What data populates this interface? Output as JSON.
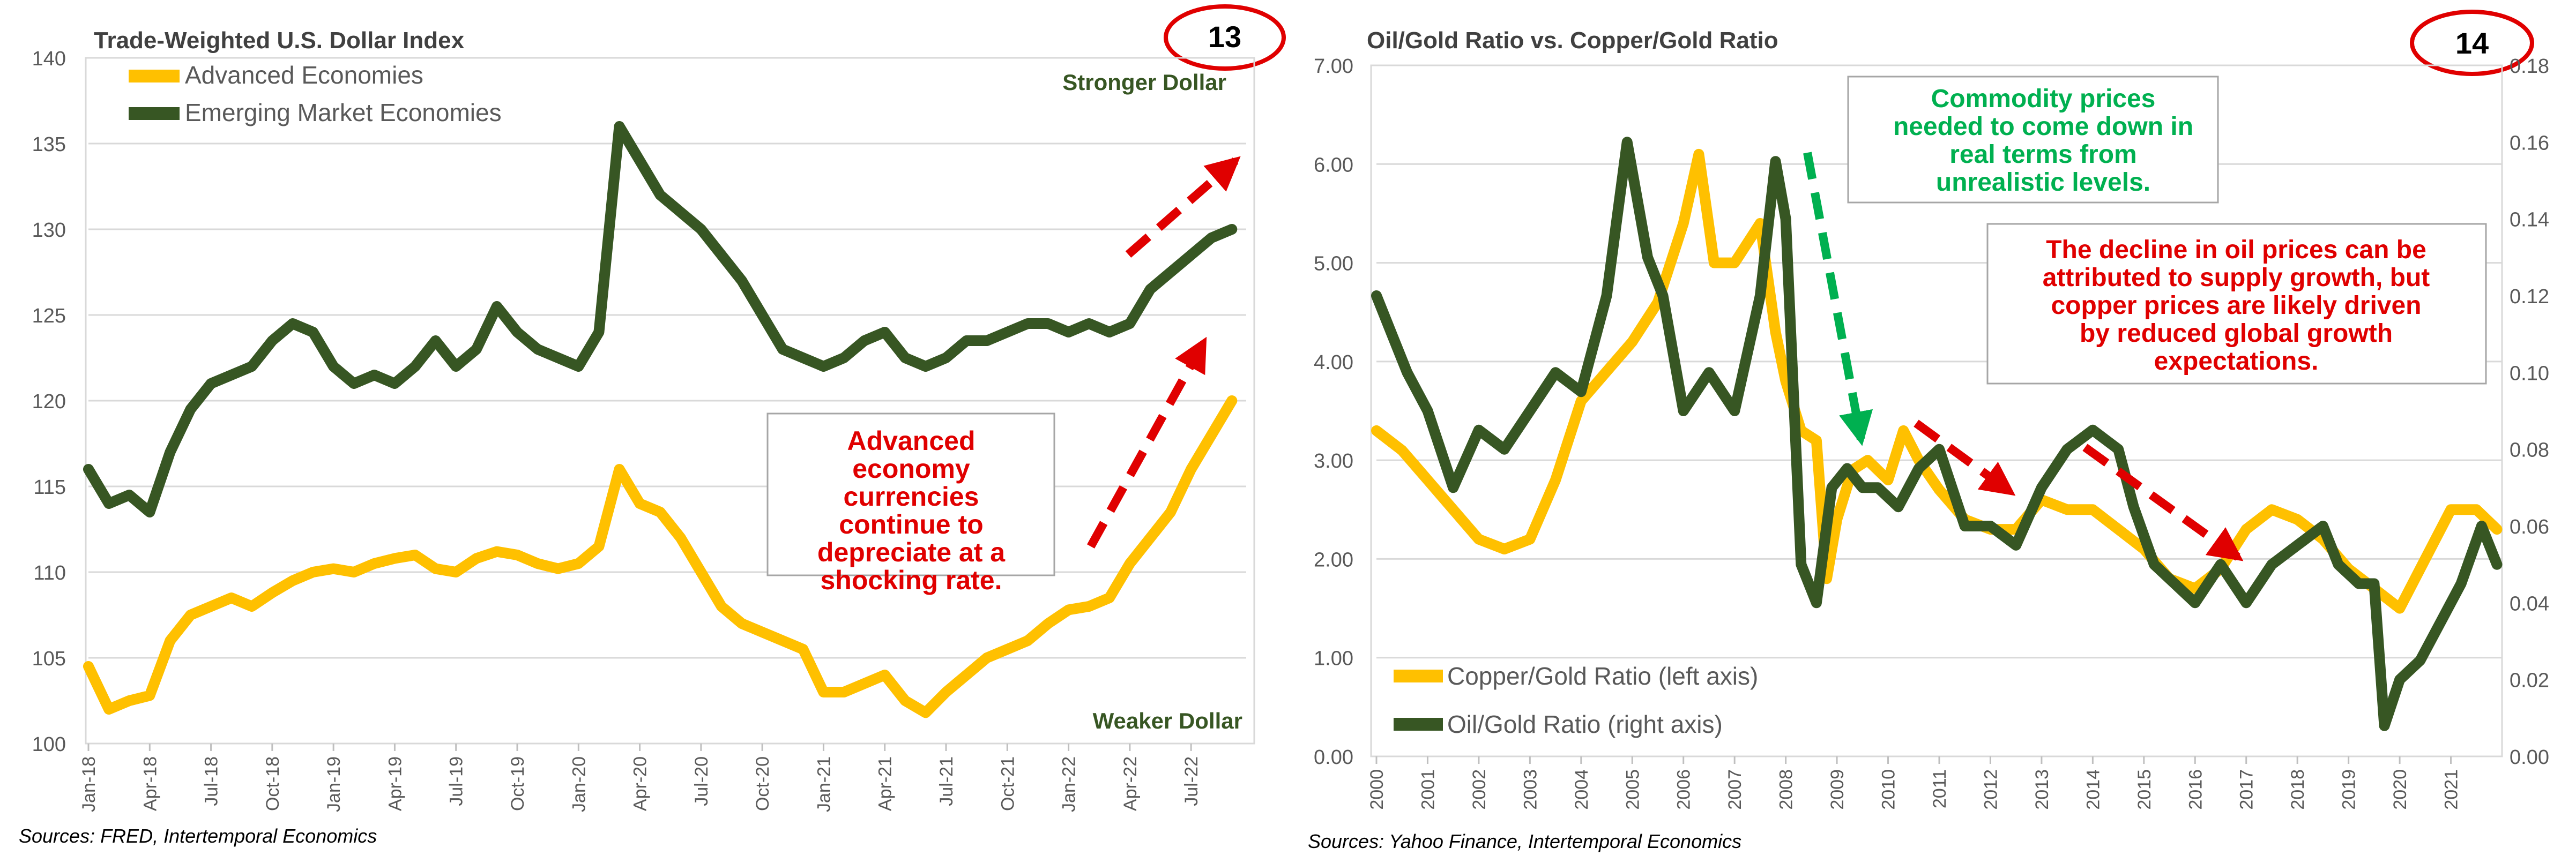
{
  "panels": {
    "left": {
      "title": "Trade-Weighted U.S. Dollar Index",
      "badge": "13",
      "source": "Sources: FRED, Intertemporal Economics",
      "annotations": {
        "stronger": "Stronger Dollar",
        "weaker": "Weaker Dollar",
        "box_lines": [
          "Advanced",
          "economy",
          "currencies",
          "continue to",
          "depreciate at a",
          "shocking rate."
        ]
      }
    },
    "right": {
      "title": "Oil/Gold Ratio vs. Copper/Gold Ratio",
      "badge": "14",
      "source": "Sources: Yahoo Finance, Intertemporal Economics",
      "annotations": {
        "green_box_lines": [
          "Commodity prices",
          "needed to come down in",
          "real terms from",
          "unrealistic levels."
        ],
        "red_box_lines": [
          "The decline in oil prices can be",
          "attributed to supply growth, but",
          "copper prices are likely driven",
          "by reduced global growth",
          "expectations."
        ]
      }
    }
  },
  "colors": {
    "yellow": "#FFC000",
    "green": "#375623",
    "red": "#E00000",
    "badge_red": "#E00000",
    "commodity_green": "#00B050",
    "text": "#404040"
  },
  "chart_data": [
    {
      "type": "line",
      "title": "Trade-Weighted U.S. Dollar Index",
      "ylim": [
        100,
        140
      ],
      "yticks": [
        "100",
        "105",
        "110",
        "115",
        "120",
        "125",
        "130",
        "135",
        "140"
      ],
      "xticks": [
        "Jan-18",
        "Apr-18",
        "Jul-18",
        "Oct-18",
        "Jan-19",
        "Apr-19",
        "Jul-19",
        "Oct-19",
        "Jan-20",
        "Apr-20",
        "Jul-20",
        "Oct-20",
        "Jan-21",
        "Apr-21",
        "Jul-21",
        "Oct-21",
        "Jan-22",
        "Apr-22",
        "Jul-22"
      ],
      "legend": "top-left",
      "series": [
        {
          "name": "Advanced Economies",
          "color": "#FFC000",
          "x": [
            "2018-01",
            "2018-02",
            "2018-03",
            "2018-04",
            "2018-05",
            "2018-06",
            "2018-07",
            "2018-08",
            "2018-09",
            "2018-10",
            "2018-11",
            "2018-12",
            "2019-01",
            "2019-02",
            "2019-03",
            "2019-04",
            "2019-05",
            "2019-06",
            "2019-07",
            "2019-08",
            "2019-09",
            "2019-10",
            "2019-11",
            "2019-12",
            "2020-01",
            "2020-02",
            "2020-03",
            "2020-04",
            "2020-05",
            "2020-06",
            "2020-07",
            "2020-08",
            "2020-09",
            "2020-10",
            "2020-11",
            "2020-12",
            "2021-01",
            "2021-02",
            "2021-03",
            "2021-04",
            "2021-05",
            "2021-06",
            "2021-07",
            "2021-08",
            "2021-09",
            "2021-10",
            "2021-11",
            "2021-12",
            "2022-01",
            "2022-02",
            "2022-03",
            "2022-04",
            "2022-05",
            "2022-06",
            "2022-07",
            "2022-08",
            "2022-09"
          ],
          "values": [
            104.5,
            102.0,
            102.5,
            102.8,
            106.0,
            107.5,
            108.0,
            108.5,
            108.0,
            108.8,
            109.5,
            110.0,
            110.2,
            110.0,
            110.5,
            110.8,
            111.0,
            110.2,
            110.0,
            110.8,
            111.2,
            111.0,
            110.5,
            110.2,
            110.5,
            111.5,
            116.0,
            114.0,
            113.5,
            112.0,
            110.0,
            108.0,
            107.0,
            106.5,
            106.0,
            105.5,
            103.0,
            103.0,
            103.5,
            104.0,
            102.5,
            101.8,
            103.0,
            104.0,
            105.0,
            105.5,
            106.0,
            107.0,
            107.8,
            108.0,
            108.5,
            110.5,
            112.0,
            113.5,
            116.0,
            118.0,
            120.0
          ]
        },
        {
          "name": "Emerging Market Economies",
          "color": "#375623",
          "x": [
            "2018-01",
            "2018-02",
            "2018-03",
            "2018-04",
            "2018-05",
            "2018-06",
            "2018-07",
            "2018-08",
            "2018-09",
            "2018-10",
            "2018-11",
            "2018-12",
            "2019-01",
            "2019-02",
            "2019-03",
            "2019-04",
            "2019-05",
            "2019-06",
            "2019-07",
            "2019-08",
            "2019-09",
            "2019-10",
            "2019-11",
            "2019-12",
            "2020-01",
            "2020-02",
            "2020-03",
            "2020-04",
            "2020-05",
            "2020-06",
            "2020-07",
            "2020-08",
            "2020-09",
            "2020-10",
            "2020-11",
            "2020-12",
            "2021-01",
            "2021-02",
            "2021-03",
            "2021-04",
            "2021-05",
            "2021-06",
            "2021-07",
            "2021-08",
            "2021-09",
            "2021-10",
            "2021-11",
            "2021-12",
            "2022-01",
            "2022-02",
            "2022-03",
            "2022-04",
            "2022-05",
            "2022-06",
            "2022-07",
            "2022-08",
            "2022-09"
          ],
          "values": [
            116.0,
            114.0,
            114.5,
            113.5,
            117.0,
            119.5,
            121.0,
            121.5,
            122.0,
            123.5,
            124.5,
            124.0,
            122.0,
            121.0,
            121.5,
            121.0,
            122.0,
            123.5,
            122.0,
            123.0,
            125.5,
            124.0,
            123.0,
            122.5,
            122.0,
            124.0,
            136.0,
            134.0,
            132.0,
            131.0,
            130.0,
            128.5,
            127.0,
            125.0,
            123.0,
            122.5,
            122.0,
            122.5,
            123.5,
            124.0,
            122.5,
            122.0,
            122.5,
            123.5,
            123.5,
            124.0,
            124.5,
            124.5,
            124.0,
            124.5,
            124.0,
            124.5,
            126.5,
            127.5,
            128.5,
            129.5,
            130.0
          ]
        }
      ]
    },
    {
      "type": "line",
      "title": "Oil/Gold Ratio vs. Copper/Gold Ratio",
      "ylim": [
        0,
        7
      ],
      "y2lim": [
        0,
        0.18
      ],
      "yticks": [
        "0.00",
        "1.00",
        "2.00",
        "3.00",
        "4.00",
        "5.00",
        "6.00",
        "7.00"
      ],
      "y2ticks": [
        "0.00",
        "0.02",
        "0.04",
        "0.06",
        "0.08",
        "0.10",
        "0.12",
        "0.14",
        "0.16",
        "0.18"
      ],
      "xticks": [
        "2000",
        "2001",
        "2002",
        "2003",
        "2004",
        "2005",
        "2006",
        "2007",
        "2008",
        "2009",
        "2010",
        "2011",
        "2012",
        "2013",
        "2014",
        "2015",
        "2016",
        "2017",
        "2018",
        "2019",
        "2020",
        "2021"
      ],
      "legend": "bottom-left",
      "series": [
        {
          "name": "Copper/Gold Ratio (left axis)",
          "axis": "left",
          "color": "#FFC000",
          "x": [
            2000.0,
            2000.5,
            2001.0,
            2001.5,
            2002.0,
            2002.5,
            2003.0,
            2003.5,
            2004.0,
            2004.5,
            2005.0,
            2005.5,
            2006.0,
            2006.3,
            2006.6,
            2007.0,
            2007.5,
            2007.8,
            2008.0,
            2008.3,
            2008.6,
            2008.8,
            2009.0,
            2009.3,
            2009.6,
            2010.0,
            2010.3,
            2010.6,
            2011.0,
            2011.5,
            2012.0,
            2012.5,
            2013.0,
            2013.5,
            2014.0,
            2014.5,
            2015.0,
            2015.5,
            2016.0,
            2016.5,
            2017.0,
            2017.5,
            2018.0,
            2018.5,
            2019.0,
            2019.5,
            2020.0,
            2020.5,
            2021.0,
            2021.5,
            2021.9
          ],
          "values": [
            3.3,
            3.1,
            2.8,
            2.5,
            2.2,
            2.1,
            2.2,
            2.8,
            3.6,
            3.9,
            4.2,
            4.6,
            5.4,
            6.1,
            5.0,
            5.0,
            5.4,
            4.3,
            3.8,
            3.3,
            3.2,
            1.8,
            2.4,
            2.9,
            3.0,
            2.8,
            3.3,
            3.0,
            2.7,
            2.4,
            2.3,
            2.3,
            2.6,
            2.5,
            2.5,
            2.3,
            2.1,
            1.8,
            1.7,
            1.9,
            2.3,
            2.5,
            2.4,
            2.2,
            1.9,
            1.7,
            1.5,
            2.0,
            2.5,
            2.5,
            2.3
          ]
        },
        {
          "name": "Oil/Gold Ratio (right axis)",
          "axis": "right",
          "color": "#375623",
          "x": [
            2000.0,
            2000.3,
            2000.6,
            2001.0,
            2001.5,
            2002.0,
            2002.5,
            2003.0,
            2003.5,
            2004.0,
            2004.5,
            2004.9,
            2005.3,
            2005.6,
            2006.0,
            2006.5,
            2007.0,
            2007.5,
            2007.8,
            2008.0,
            2008.3,
            2008.6,
            2008.9,
            2009.2,
            2009.5,
            2009.8,
            2010.2,
            2010.6,
            2011.0,
            2011.5,
            2012.0,
            2012.5,
            2013.0,
            2013.5,
            2014.0,
            2014.5,
            2014.8,
            2015.2,
            2015.6,
            2016.0,
            2016.5,
            2017.0,
            2017.5,
            2018.0,
            2018.5,
            2018.8,
            2019.2,
            2019.5,
            2019.7,
            2020.0,
            2020.4,
            2020.8,
            2021.2,
            2021.6,
            2021.9
          ],
          "values": [
            0.12,
            0.11,
            0.1,
            0.09,
            0.07,
            0.085,
            0.08,
            0.09,
            0.1,
            0.095,
            0.12,
            0.16,
            0.13,
            0.12,
            0.09,
            0.1,
            0.09,
            0.12,
            0.155,
            0.14,
            0.05,
            0.04,
            0.07,
            0.075,
            0.07,
            0.07,
            0.065,
            0.075,
            0.08,
            0.06,
            0.06,
            0.055,
            0.07,
            0.08,
            0.085,
            0.08,
            0.065,
            0.05,
            0.045,
            0.04,
            0.05,
            0.04,
            0.05,
            0.055,
            0.06,
            0.05,
            0.045,
            0.045,
            0.008,
            0.02,
            0.025,
            0.035,
            0.045,
            0.06,
            0.05
          ]
        }
      ]
    }
  ]
}
